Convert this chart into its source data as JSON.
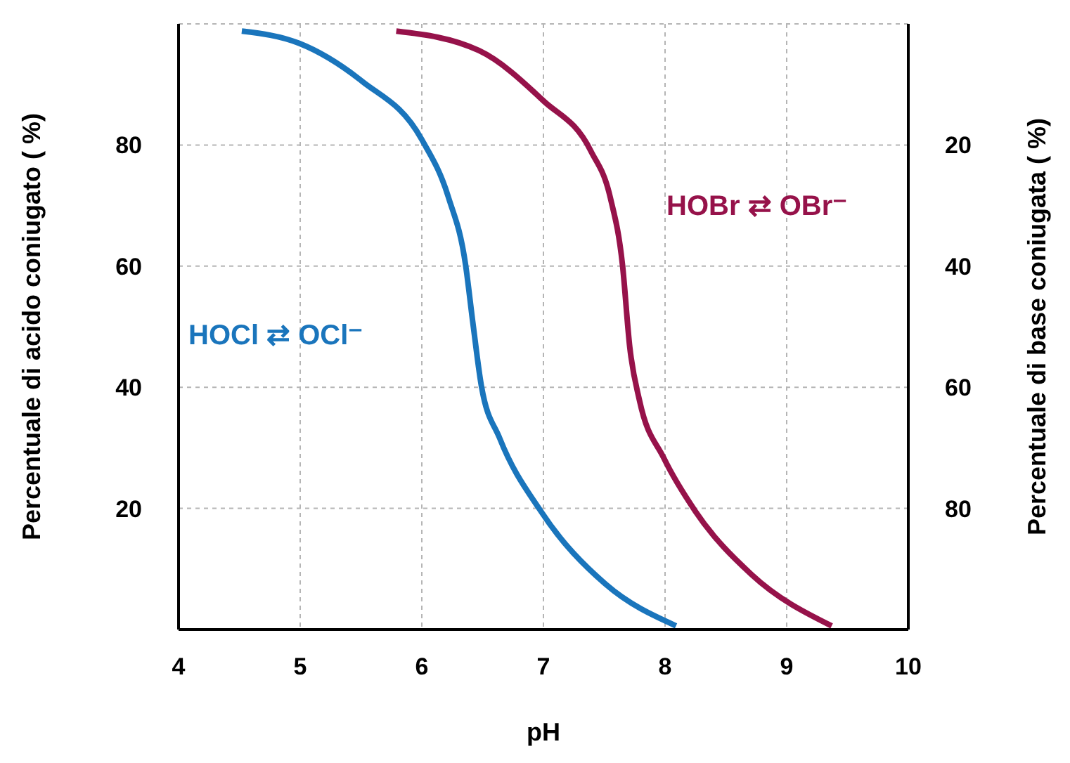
{
  "chart_data": {
    "type": "line",
    "xlabel": "pH",
    "ylabel": "Percentuale di acido coniugato ( %)",
    "y2label": "Percentuale di base coniugata ( %)",
    "xlim": [
      4,
      10
    ],
    "xticks": [
      4,
      5,
      6,
      7,
      8,
      9,
      10
    ],
    "ylim": [
      0,
      100
    ],
    "yticks": [
      20,
      40,
      60,
      80
    ],
    "y2lim": [
      100,
      0
    ],
    "y2ticks": [
      20,
      40,
      60,
      80
    ],
    "grid": true,
    "legend": false,
    "marker": "none",
    "line_style": "solid",
    "series": [
      {
        "name": "HOCl ⇄ OCl⁻",
        "color": "#1a75bc",
        "x": [
          4.52,
          4.99,
          5.51,
          6.0,
          6.22,
          6.36,
          6.42,
          6.49,
          6.64,
          6.98,
          7.51,
          8.09
        ],
        "values": [
          98.8,
          96.8,
          90.5,
          80.9,
          71.3,
          60.2,
          50.6,
          40.2,
          31.6,
          19.5,
          7.5,
          0.6
        ]
      },
      {
        "name": "HOBr ⇄ OBr⁻",
        "color": "#96124a",
        "x": [
          5.79,
          6.47,
          7.0,
          7.39,
          7.55,
          7.65,
          7.71,
          7.79,
          7.99,
          8.25,
          8.71,
          9.37
        ],
        "values": [
          98.8,
          95.6,
          87.3,
          79,
          71.3,
          60.2,
          46.6,
          37.8,
          28.3,
          19.5,
          9.1,
          0.6
        ]
      }
    ]
  }
}
